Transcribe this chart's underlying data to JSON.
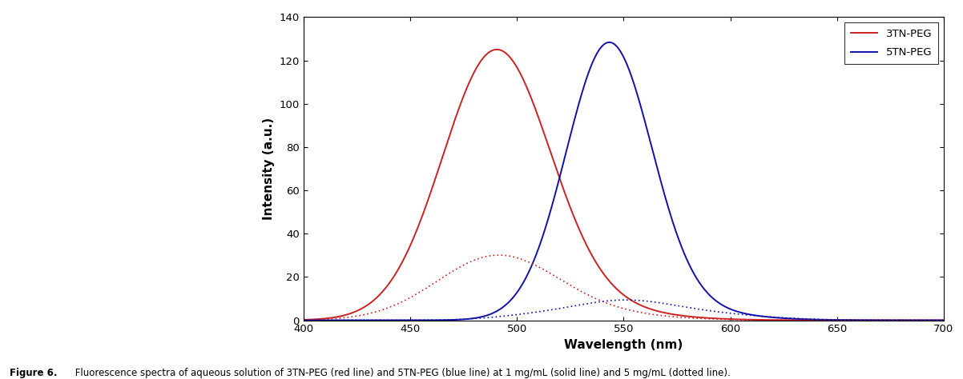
{
  "title": "",
  "xlabel": "Wavelength (nm)",
  "ylabel": "Intensity (a.u.)",
  "xlim": [
    400,
    700
  ],
  "ylim": [
    0,
    140
  ],
  "xticks": [
    400,
    450,
    500,
    550,
    600,
    650,
    700
  ],
  "yticks": [
    0,
    20,
    40,
    60,
    80,
    100,
    120,
    140
  ],
  "color_red": "#CC2222",
  "color_blue": "#1111AA",
  "legend_labels": [
    "3TN-PEG",
    "5TN-PEG"
  ],
  "curves": {
    "red_solid": {
      "peak": 490,
      "height": 120,
      "sigma": 25
    },
    "blue_solid": {
      "peak": 543,
      "height": 125,
      "sigma": 20
    },
    "red_dotted": {
      "peak": 490,
      "height": 28,
      "sigma": 28
    },
    "blue_dotted": {
      "peak": 548,
      "height": 7,
      "sigma": 22
    }
  },
  "fig_label_bold": "Figure 6.",
  "fig_label_rest": " Fluorescence spectra of aqueous solution of 3TN-PEG (red line) and 5TN-PEG (blue line) at 1 mg/mL (solid line) and 5 mg/mL (dotted line)."
}
